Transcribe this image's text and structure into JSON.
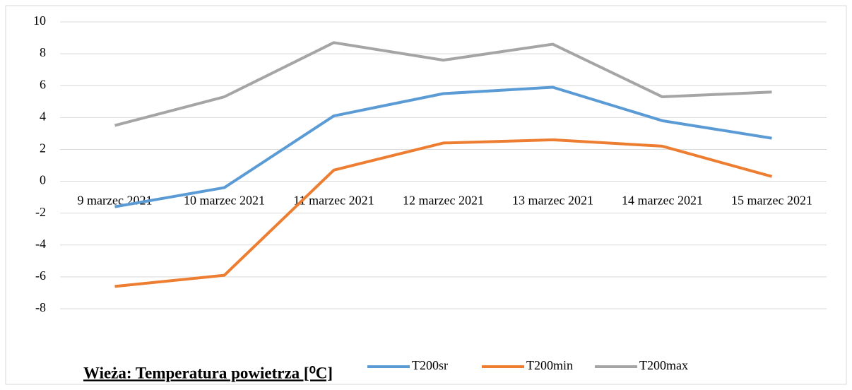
{
  "chart_data": {
    "type": "line",
    "title": "Wieża: Temperatura powietrza [⁰C]",
    "categories": [
      "9 marzec 2021",
      "10 marzec 2021",
      "11 marzec 2021",
      "12 marzec 2021",
      "13 marzec 2021",
      "14 marzec 2021",
      "15 marzec 2021"
    ],
    "series": [
      {
        "name": "T200sr",
        "color": "#5b9bd5",
        "values": [
          -1.6,
          -0.4,
          4.1,
          5.5,
          5.9,
          3.8,
          2.7
        ]
      },
      {
        "name": "T200min",
        "color": "#ed7d31",
        "values": [
          -6.6,
          -5.9,
          0.7,
          2.4,
          2.6,
          2.2,
          0.3
        ]
      },
      {
        "name": "T200max",
        "color": "#a5a5a5",
        "values": [
          3.5,
          5.3,
          8.7,
          7.6,
          8.6,
          5.3,
          5.6
        ]
      }
    ],
    "ylim": [
      -8,
      10
    ],
    "yticks": [
      -8,
      -6,
      -4,
      -2,
      0,
      2,
      4,
      6,
      8,
      10
    ],
    "grid": true,
    "legend": "bottom"
  }
}
